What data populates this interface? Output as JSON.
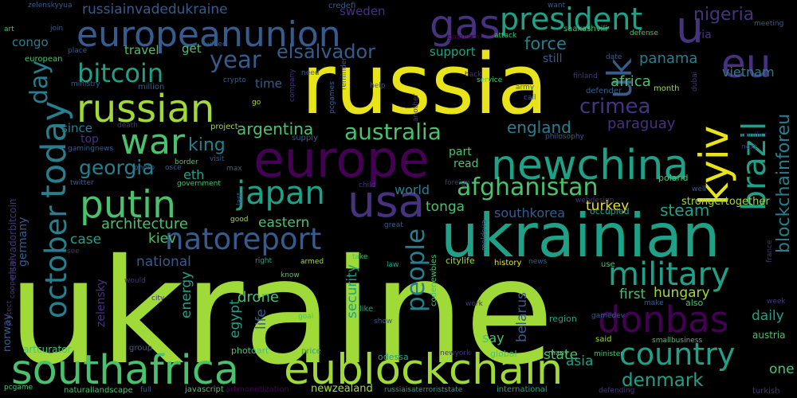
{
  "background": "#000000",
  "palette": {
    "lime": "#a0da39",
    "yellow": "#e8e419",
    "green": "#4ac16d",
    "teal": "#1fa187",
    "cyan": "#277f8e",
    "blue": "#365c8d",
    "indigo": "#46327e",
    "purple": "#440154"
  },
  "words": [
    {
      "text": "ukraine",
      "color": "lime"
    },
    {
      "text": "russia",
      "color": "yellow"
    },
    {
      "text": "ukrainian",
      "color": "teal"
    },
    {
      "text": "europe",
      "color": "purple"
    },
    {
      "text": "eublockchain",
      "color": "lime"
    },
    {
      "text": "southafrica",
      "color": "green"
    },
    {
      "text": "russian",
      "color": "lime"
    },
    {
      "text": "europeanunion",
      "color": "blue"
    },
    {
      "text": "president",
      "color": "teal"
    },
    {
      "text": "gas",
      "color": "indigo"
    },
    {
      "text": "eu",
      "color": "indigo"
    },
    {
      "text": "u",
      "color": "indigo"
    },
    {
      "text": "uk",
      "color": "blue"
    },
    {
      "text": "war",
      "color": "green"
    },
    {
      "text": "newchina",
      "color": "teal"
    },
    {
      "text": "kyiv",
      "color": "yellow"
    },
    {
      "text": "brazil",
      "color": "teal"
    },
    {
      "text": "blockchainforeu",
      "color": "cyan"
    },
    {
      "text": "putin",
      "color": "green"
    },
    {
      "text": "japan",
      "color": "teal"
    },
    {
      "text": "usa",
      "color": "indigo"
    },
    {
      "text": "natoreport",
      "color": "blue"
    },
    {
      "text": "donbas",
      "color": "purple"
    },
    {
      "text": "military",
      "color": "teal"
    },
    {
      "text": "country",
      "color": "teal"
    },
    {
      "text": "today",
      "color": "cyan"
    },
    {
      "text": "october",
      "color": "cyan"
    },
    {
      "text": "people",
      "color": "cyan"
    },
    {
      "text": "australia",
      "color": "green"
    },
    {
      "text": "afghanistan",
      "color": "green"
    },
    {
      "text": "bitcoin",
      "color": "teal"
    },
    {
      "text": "year",
      "color": "blue"
    },
    {
      "text": "elsalvador",
      "color": "blue"
    },
    {
      "text": "crimea",
      "color": "indigo"
    },
    {
      "text": "georgia",
      "color": "cyan"
    },
    {
      "text": "day",
      "color": "cyan"
    },
    {
      "text": "russiainvadedukraine",
      "color": "blue"
    },
    {
      "text": "nigeria",
      "color": "indigo"
    },
    {
      "text": "force",
      "color": "cyan"
    },
    {
      "text": "panama",
      "color": "cyan"
    },
    {
      "text": "vietnam",
      "color": "cyan"
    },
    {
      "text": "africa",
      "color": "green"
    },
    {
      "text": "england",
      "color": "cyan"
    },
    {
      "text": "paraguay",
      "color": "indigo"
    },
    {
      "text": "argentina",
      "color": "green"
    },
    {
      "text": "king",
      "color": "cyan"
    },
    {
      "text": "eth",
      "color": "teal"
    },
    {
      "text": "world",
      "color": "cyan"
    },
    {
      "text": "steam",
      "color": "teal"
    },
    {
      "text": "tonga",
      "color": "green"
    },
    {
      "text": "southkorea",
      "color": "blue"
    },
    {
      "text": "turkey",
      "color": "yellow"
    },
    {
      "text": "eastern",
      "color": "green"
    },
    {
      "text": "architecture",
      "color": "green"
    },
    {
      "text": "kiev",
      "color": "green"
    },
    {
      "text": "case",
      "color": "teal"
    },
    {
      "text": "national",
      "color": "blue"
    },
    {
      "text": "energy",
      "color": "teal"
    },
    {
      "text": "egypt",
      "color": "teal"
    },
    {
      "text": "drone",
      "color": "green"
    },
    {
      "text": "life",
      "color": "blue"
    },
    {
      "text": "security",
      "color": "teal"
    },
    {
      "text": "hungary",
      "color": "lime"
    },
    {
      "text": "first",
      "color": "green"
    },
    {
      "text": "asia",
      "color": "teal"
    },
    {
      "text": "denmark",
      "color": "teal"
    },
    {
      "text": "state",
      "color": "green"
    },
    {
      "text": "one",
      "color": "green"
    },
    {
      "text": "daily",
      "color": "teal"
    },
    {
      "text": "say",
      "color": "green"
    },
    {
      "text": "belarus",
      "color": "blue"
    },
    {
      "text": "elsalvadorbitcoin",
      "color": "indigo"
    },
    {
      "text": "germany",
      "color": "blue"
    },
    {
      "text": "zelensky",
      "color": "indigo"
    },
    {
      "text": "norway",
      "color": "blue"
    },
    {
      "text": "sweden",
      "color": "indigo"
    },
    {
      "text": "congo",
      "color": "cyan"
    },
    {
      "text": "travel",
      "color": "green"
    },
    {
      "text": "get",
      "color": "green"
    },
    {
      "text": "support",
      "color": "teal"
    },
    {
      "text": "still",
      "color": "blue"
    },
    {
      "text": "time",
      "color": "blue"
    },
    {
      "text": "since",
      "color": "cyan"
    },
    {
      "text": "top",
      "color": "indigo"
    },
    {
      "text": "part",
      "color": "green"
    },
    {
      "text": "read",
      "color": "green"
    },
    {
      "text": "via",
      "color": "indigo"
    },
    {
      "text": "odessa",
      "color": "teal"
    },
    {
      "text": "photoart",
      "color": "green"
    },
    {
      "text": "artcurator",
      "color": "green"
    },
    {
      "text": "naturallandscape",
      "color": "green"
    },
    {
      "text": "newzealand",
      "color": "lime"
    },
    {
      "text": "javascript",
      "color": "green"
    },
    {
      "text": "artmonetization",
      "color": "purple"
    },
    {
      "text": "russiaisaterroriststate",
      "color": "teal"
    },
    {
      "text": "international",
      "color": "teal"
    },
    {
      "text": "turkish",
      "color": "indigo"
    },
    {
      "text": "austria",
      "color": "green"
    },
    {
      "text": "strongertogether",
      "color": "lime"
    },
    {
      "text": "occupied",
      "color": "teal"
    },
    {
      "text": "poland",
      "color": "green"
    },
    {
      "text": "global",
      "color": "green"
    },
    {
      "text": "group",
      "color": "blue"
    },
    {
      "text": "price",
      "color": "teal"
    },
    {
      "text": "codenewbies",
      "color": "green"
    },
    {
      "text": "citylife",
      "color": "lime"
    },
    {
      "text": "history",
      "color": "yellow"
    },
    {
      "text": "region",
      "color": "teal"
    },
    {
      "text": "said",
      "color": "lime"
    },
    {
      "text": "smallbusiness",
      "color": "green"
    },
    {
      "text": "european",
      "color": "green"
    },
    {
      "text": "project",
      "color": "lime"
    },
    {
      "text": "supply",
      "color": "blue"
    },
    {
      "text": "crypto",
      "color": "blue"
    },
    {
      "text": "million",
      "color": "blue"
    },
    {
      "text": "ministry",
      "color": "blue"
    },
    {
      "text": "month",
      "color": "lime"
    },
    {
      "text": "defender",
      "color": "blue"
    },
    {
      "text": "service",
      "color": "green"
    },
    {
      "text": "saakashvili",
      "color": "green"
    },
    {
      "text": "credefi",
      "color": "blue"
    },
    {
      "text": "zelenskyyua",
      "color": "blue"
    },
    {
      "text": "defense",
      "color": "green"
    },
    {
      "text": "attack",
      "color": "green"
    },
    {
      "text": "meeting",
      "color": "blue"
    },
    {
      "text": "want",
      "color": "blue"
    },
    {
      "text": "gamingnews",
      "color": "blue"
    },
    {
      "text": "twitter",
      "color": "blue"
    },
    {
      "text": "border",
      "color": "green"
    },
    {
      "text": "government",
      "color": "green"
    },
    {
      "text": "visit",
      "color": "blue"
    },
    {
      "text": "max",
      "color": "blue"
    },
    {
      "text": "good",
      "color": "lime"
    },
    {
      "text": "great",
      "color": "blue"
    },
    {
      "text": "right",
      "color": "teal"
    },
    {
      "text": "armed",
      "color": "lime"
    },
    {
      "text": "take",
      "color": "green"
    },
    {
      "text": "law",
      "color": "teal"
    },
    {
      "text": "use",
      "color": "green"
    },
    {
      "text": "news",
      "color": "blue"
    },
    {
      "text": "know",
      "color": "green"
    },
    {
      "text": "goal",
      "color": "green"
    },
    {
      "text": "like",
      "color": "teal"
    },
    {
      "text": "show",
      "color": "blue"
    },
    {
      "text": "work",
      "color": "indigo"
    },
    {
      "text": "make",
      "color": "blue"
    },
    {
      "text": "also",
      "color": "green"
    },
    {
      "text": "week",
      "color": "indigo"
    },
    {
      "text": "newyork",
      "color": "indigo"
    },
    {
      "text": "many",
      "color": "green"
    },
    {
      "text": "minister",
      "color": "green"
    },
    {
      "text": "full",
      "color": "blue"
    },
    {
      "text": "defending",
      "color": "indigo"
    },
    {
      "text": "pcgame",
      "color": "green"
    },
    {
      "text": "need",
      "color": "blue"
    },
    {
      "text": "help",
      "color": "blue"
    },
    {
      "text": "army",
      "color": "blue"
    },
    {
      "text": "call",
      "color": "blue"
    },
    {
      "text": "back",
      "color": "indigo"
    },
    {
      "text": "finland",
      "color": "indigo"
    },
    {
      "text": "date",
      "color": "blue"
    },
    {
      "text": "conflict",
      "color": "purple"
    },
    {
      "text": "philosophy",
      "color": "blue"
    },
    {
      "text": "foreign",
      "color": "indigo"
    },
    {
      "text": "another",
      "color": "indigo"
    },
    {
      "text": "reminder",
      "color": "blue"
    },
    {
      "text": "pcgames",
      "color": "blue"
    },
    {
      "text": "company",
      "color": "indigo"
    },
    {
      "text": "death",
      "color": "indigo"
    },
    {
      "text": "photo",
      "color": "blue"
    },
    {
      "text": "osce",
      "color": "blue"
    },
    {
      "text": "child",
      "color": "indigo"
    },
    {
      "text": "webdesign",
      "color": "indigo"
    },
    {
      "text": "moldova",
      "color": "blue"
    },
    {
      "text": "france",
      "color": "indigo"
    },
    {
      "text": "cooperation",
      "color": "indigo"
    },
    {
      "text": "protect",
      "color": "indigo"
    },
    {
      "text": "gamedev",
      "color": "blue"
    },
    {
      "text": "well",
      "color": "blue"
    },
    {
      "text": "next",
      "color": "indigo"
    },
    {
      "text": "city",
      "color": "indigo"
    },
    {
      "text": "would",
      "color": "indigo"
    },
    {
      "text": "see",
      "color": "indigo"
    },
    {
      "text": "join",
      "color": "blue"
    },
    {
      "text": "art",
      "color": "green"
    },
    {
      "text": "place",
      "color": "blue"
    },
    {
      "text": "video",
      "color": "blue"
    },
    {
      "text": "gazprom",
      "color": "purple"
    },
    {
      "text": "last",
      "color": "blue"
    },
    {
      "text": "go",
      "color": "lime"
    },
    {
      "text": "dubai",
      "color": "indigo"
    }
  ]
}
